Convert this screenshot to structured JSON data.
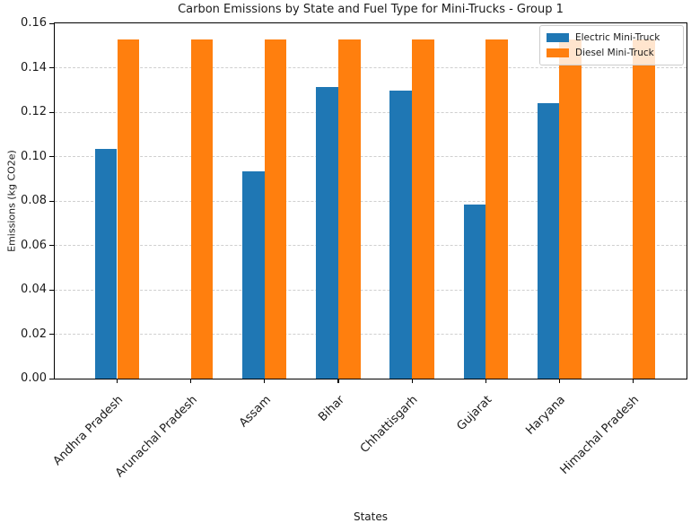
{
  "chart_data": {
    "type": "bar",
    "title": "Carbon Emissions by State and Fuel Type for Mini-Trucks - Group 1",
    "xlabel": "States",
    "ylabel": "Emissions (kg CO2e)",
    "categories": [
      "Andhra Pradesh",
      "Arunachal Pradesh",
      "Assam",
      "Bihar",
      "Chhattisgarh",
      "Gujarat",
      "Haryana",
      "Himachal Pradesh"
    ],
    "series": [
      {
        "name": "Electric Mini-Truck",
        "color": "#1f77b4",
        "values": [
          0.1035,
          0.0,
          0.0933,
          0.1315,
          0.1299,
          0.0784,
          0.1242,
          0.0
        ]
      },
      {
        "name": "Diesel Mini-Truck",
        "color": "#ff7f0e",
        "values": [
          0.1528,
          0.1528,
          0.1528,
          0.1528,
          0.1528,
          0.1528,
          0.1528,
          0.1528
        ]
      }
    ],
    "ylim": [
      0,
      0.16
    ],
    "yticks": [
      0.0,
      0.02,
      0.04,
      0.06,
      0.08,
      0.1,
      0.12,
      0.14,
      0.16
    ],
    "ytick_labels": [
      "0.00",
      "0.02",
      "0.04",
      "0.06",
      "0.08",
      "0.10",
      "0.12",
      "0.14",
      "0.16"
    ],
    "grid": "horizontal-dashed",
    "legend_position": "upper-right"
  }
}
